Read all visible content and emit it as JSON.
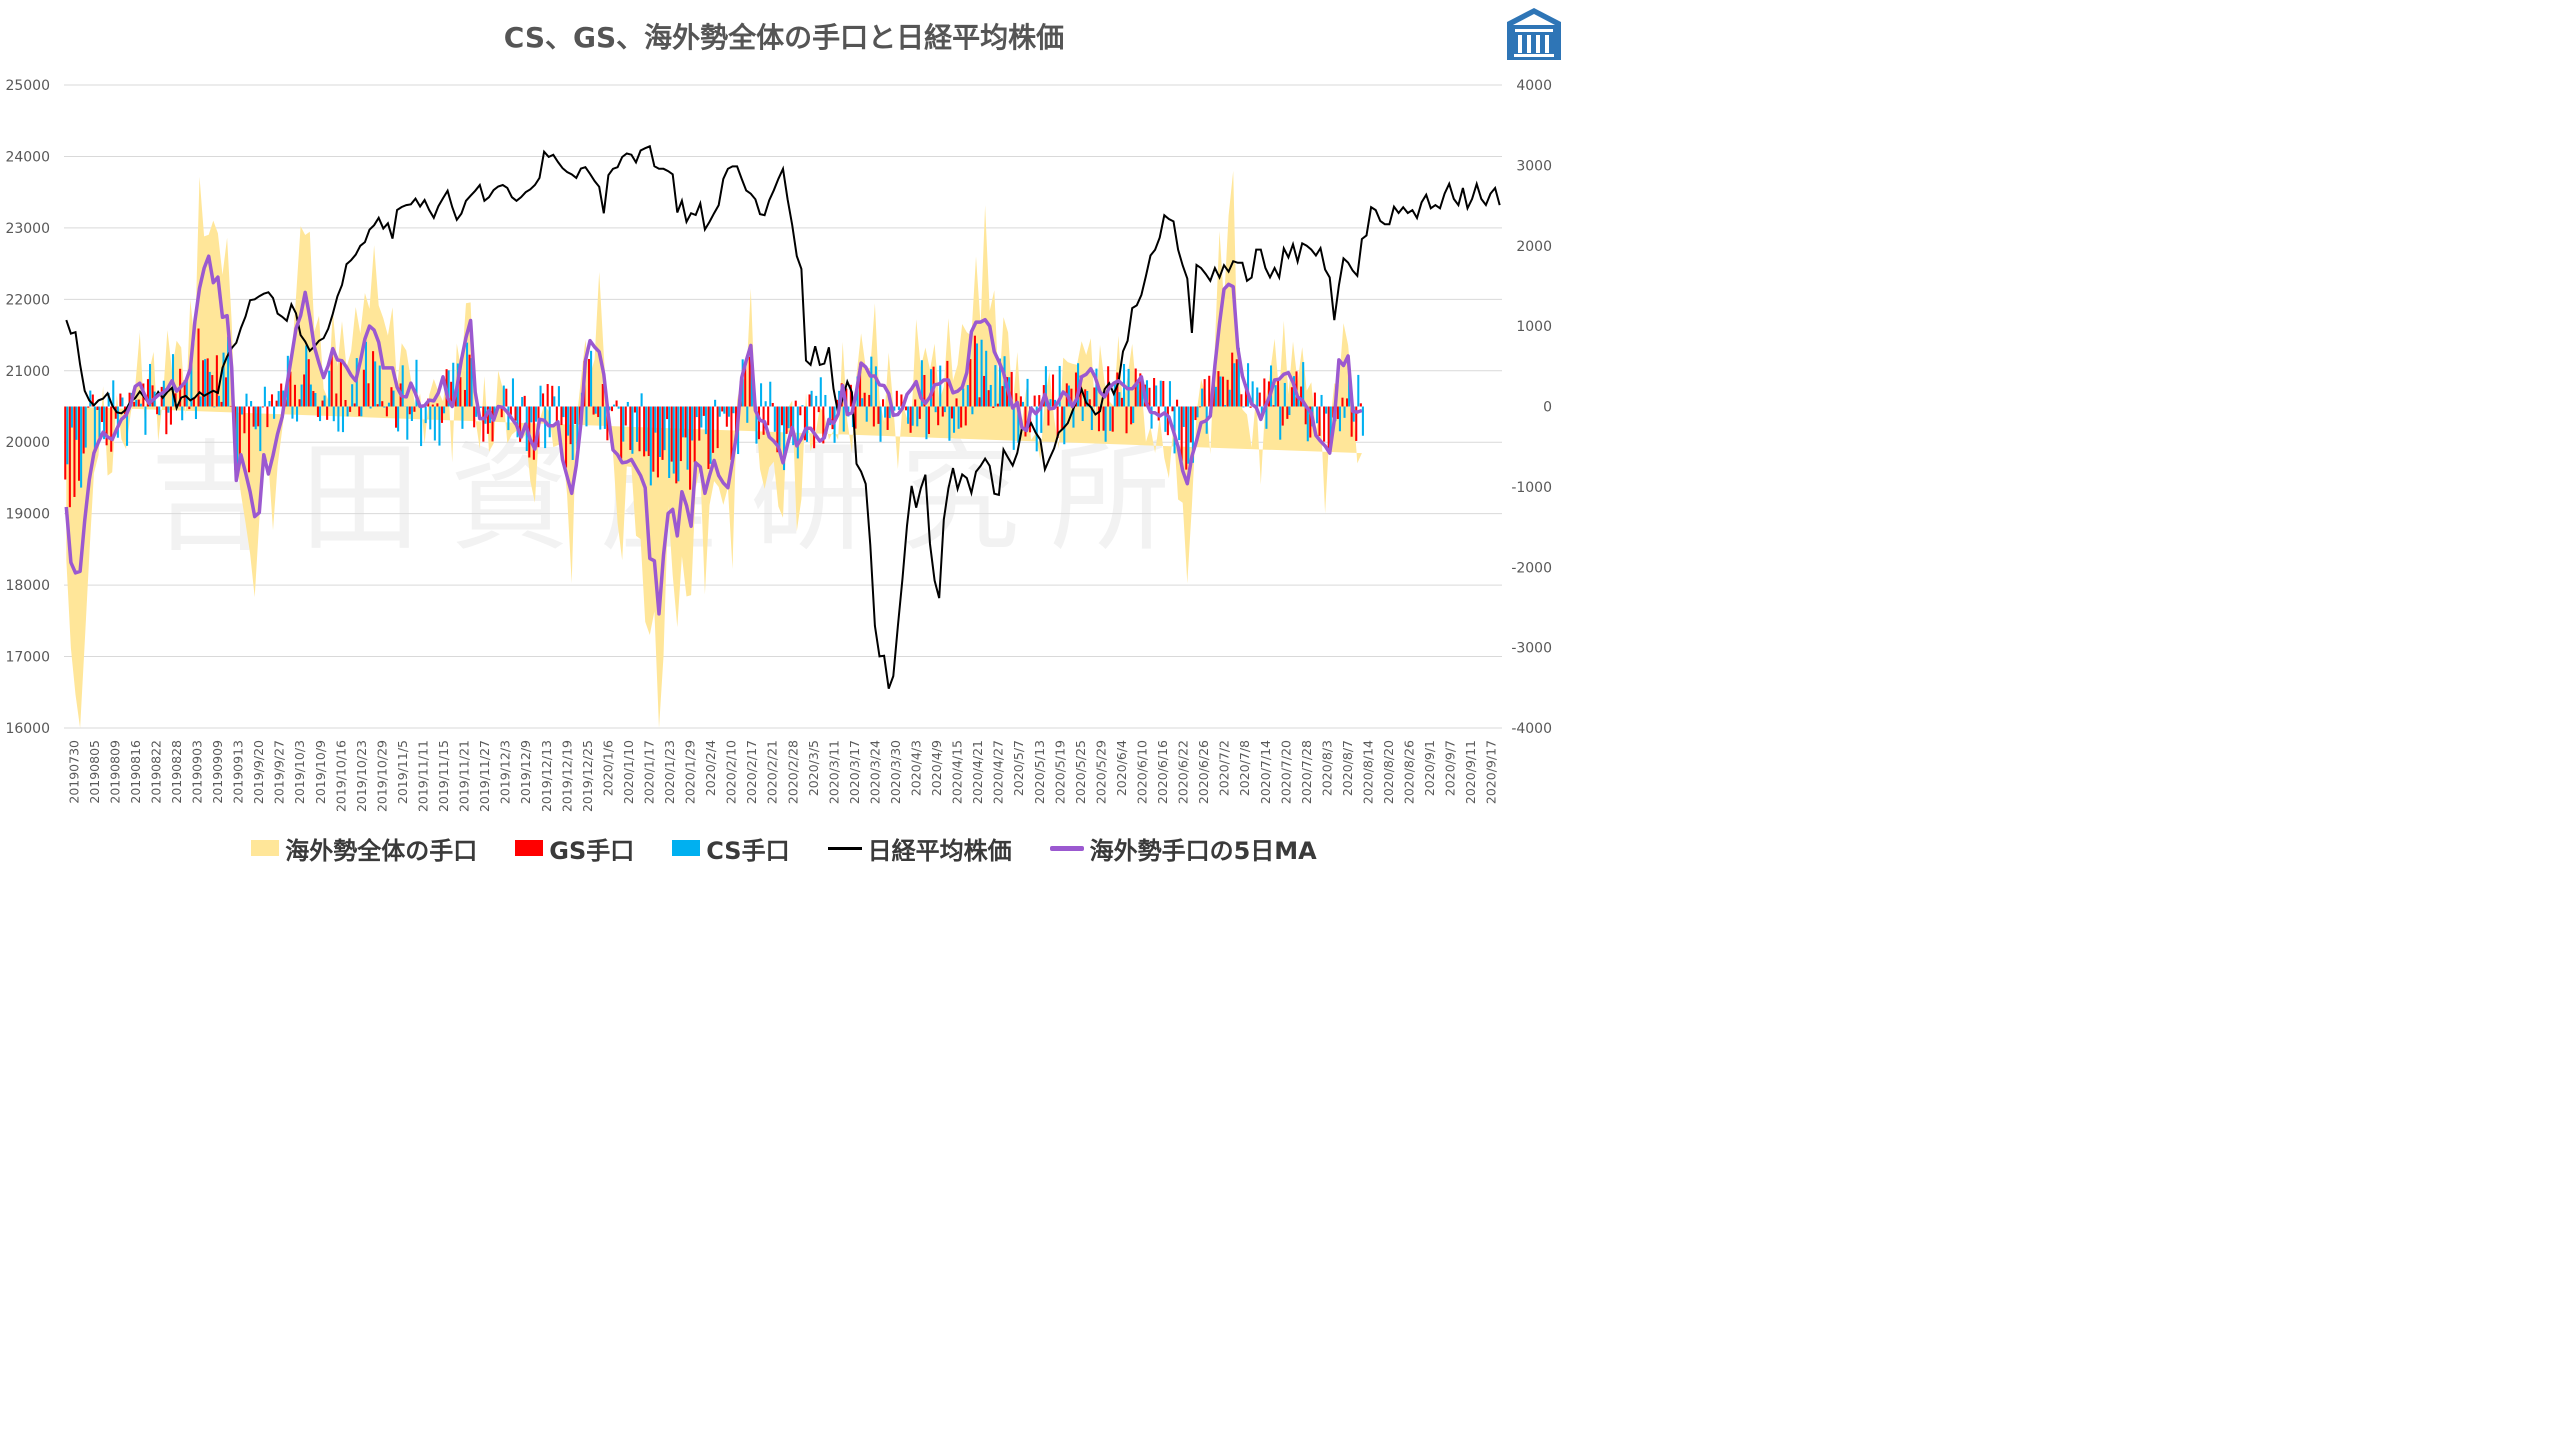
{
  "title": "CS、GS、海外勢全体の手口と日経平均株価",
  "watermark": "吉田資産研究所",
  "colors": {
    "foreign": "#FFE699",
    "gs": "#FF0000",
    "cs": "#00B0F0",
    "nikkei": "#000000",
    "ma5": "#9B59D0",
    "grid": "#D9D9D9",
    "logo": "#2E75B6"
  },
  "icons": {
    "logo": "building-logo-icon"
  },
  "legend": [
    {
      "key": "foreign",
      "label": "海外勢全体の手口",
      "kind": "area"
    },
    {
      "key": "gs",
      "label": "GS手口",
      "kind": "bar"
    },
    {
      "key": "cs",
      "label": "CS手口",
      "kind": "bar"
    },
    {
      "key": "nikkei",
      "label": "日経平均株価",
      "kind": "line"
    },
    {
      "key": "ma5",
      "label": "海外勢手口の5日MA",
      "kind": "line"
    }
  ],
  "chart_data": {
    "type": "bar",
    "left_axis": {
      "ticks": [
        "25000",
        "24000",
        "23000",
        "22000",
        "21000",
        "20000",
        "19000",
        "18000",
        "17000",
        "16000"
      ],
      "min": 16000,
      "max": 25000
    },
    "right_axis": {
      "ticks": [
        "4000",
        "3000",
        "2000",
        "1000",
        "0",
        "-1000",
        "-2000",
        "-3000",
        "-4000"
      ],
      "min": -4000,
      "max": 4000
    },
    "grid": true,
    "legend_position": "bottom",
    "x_tick_labels": [
      "20190730",
      "20190805",
      "20190809",
      "20190816",
      "20190822",
      "20190828",
      "20190903",
      "20190909",
      "20190913",
      "2019/9/20",
      "2019/9/27",
      "2019/10/3",
      "2019/10/9",
      "2019/10/16",
      "2019/10/23",
      "2019/10/29",
      "2019/11/5",
      "2019/11/11",
      "2019/11/15",
      "2019/11/21",
      "2019/11/27",
      "2019/12/3",
      "2019/12/9",
      "2019/12/13",
      "2019/12/19",
      "2019/12/25",
      "2020/1/6",
      "2020/1/10",
      "2020/1/17",
      "2020/1/23",
      "2020/1/29",
      "2020/2/4",
      "2020/2/10",
      "2020/2/17",
      "2020/2/21",
      "2020/2/28",
      "2020/3/5",
      "2020/3/11",
      "2020/3/17",
      "2020/3/24",
      "2020/3/30",
      "2020/4/3",
      "2020/4/9",
      "2020/4/15",
      "2020/4/21",
      "2020/4/27",
      "2020/5/7",
      "2020/5/13",
      "2020/5/19",
      "2020/5/25",
      "2020/5/29",
      "2020/6/4",
      "2020/6/10",
      "2020/6/16",
      "2020/6/22",
      "2020/6/26",
      "2020/7/2",
      "2020/7/8",
      "2020/7/14",
      "2020/7/20",
      "2020/7/28",
      "2020/8/3",
      "2020/8/7",
      "2020/8/14",
      "2020/8/20",
      "2020/8/26",
      "2020/9/1",
      "2020/9/7",
      "2020/9/11",
      "2020/9/17"
    ],
    "series": [
      {
        "key": "nikkei",
        "name": "日経平均株価",
        "axis": "left",
        "values": [
          21709,
          21521,
          21540,
          21087,
          20720,
          20586,
          20517,
          20585,
          20610,
          20685,
          20516,
          20419,
          20405,
          20455,
          20574,
          20618,
          20710,
          20628,
          20536,
          20586,
          20704,
          20620,
          20704,
          20761,
          20477,
          20625,
          20649,
          20585,
          20625,
          20700,
          20650,
          20685,
          20720,
          20690,
          21041,
          21199,
          21318,
          21392,
          21597,
          21759,
          21988,
          22001,
          22044,
          22079,
          22098,
          22019,
          21800,
          21755,
          21700,
          21930,
          21805,
          21500,
          21410,
          21280,
          21341,
          21420,
          21456,
          21587,
          21798,
          22041,
          22200,
          22492,
          22548,
          22625,
          22750,
          22800,
          22974,
          23038,
          23141,
          22992,
          23064,
          22850,
          23251,
          23292,
          23319,
          23330,
          23410,
          23300,
          23391,
          23250,
          23141,
          23303,
          23416,
          23520,
          23292,
          23113,
          23200,
          23379,
          23450,
          23519,
          23600,
          23379,
          23430,
          23529,
          23580,
          23600,
          23560,
          23430,
          23379,
          23430,
          23500,
          23540,
          23600,
          23700,
          24066,
          23994,
          24023,
          23924,
          23837,
          23782,
          23750,
          23700,
          23830,
          23850,
          23757,
          23656,
          23575,
          23204,
          23739,
          23827,
          23850,
          23992,
          24041,
          24025,
          23916,
          24083,
          24115,
          24142,
          23864,
          23828,
          23827,
          23795,
          23750,
          23215,
          23380,
          23084,
          23205,
          23180,
          23343,
          22977,
          23084,
          23205,
          23319,
          23685,
          23827,
          23861,
          23860,
          23685,
          23523,
          23479,
          23400,
          23193,
          23178,
          23386,
          23526,
          23687,
          23827,
          23400,
          23040,
          22605,
          22426,
          21142,
          21082,
          21344,
          21082,
          21100,
          21329,
          20749,
          20410,
          20613,
          20849,
          20700,
          19698,
          19589,
          19416,
          18560,
          17431,
          17002,
          17011,
          16552,
          16726,
          17431,
          18092,
          18832,
          19389,
          19084,
          19353,
          19546,
          18576,
          18065,
          17818,
          18917,
          19354,
          19638,
          19345,
          19550,
          19498,
          19290,
          19587,
          19669,
          19771,
          19669,
          19280,
          19262,
          19897,
          19783,
          19674,
          19850,
          20193,
          20179,
          20267,
          20133,
          20037,
          19619,
          19771,
          19914,
          20133,
          20193,
          20267,
          20433,
          20595,
          20741,
          20552,
          20493,
          20388,
          20433,
          20741,
          20826,
          20676,
          20834,
          21271,
          21419,
          21877,
          21916,
          22062,
          22325,
          22613,
          22695,
          22864,
          23178,
          23124,
          23091,
          22695,
          22474,
          22290,
          21530,
          22482,
          22437,
          22355,
          22259,
          22437,
          22305,
          22478,
          22388,
          22534,
          22512,
          22512,
          22259,
          22304,
          22696,
          22696,
          22438,
          22307,
          22438,
          22306,
          22714,
          22587,
          22770,
          22528,
          22784,
          22751,
          22696,
          22614,
          22717,
          22418,
          22306,
          21710,
          22195,
          22573,
          22514,
          22402,
          22329,
          22844,
          22895,
          23289,
          23249,
          23097,
          23051,
          23051,
          23296,
          23209,
          23289,
          23209,
          23249,
          23138,
          23358,
          23465,
          23274,
          23319,
          23274,
          23480,
          23617,
          23406,
          23319,
          23559,
          23274,
          23406,
          23616,
          23406,
          23320,
          23480,
          23559,
          23319
        ]
      },
      {
        "key": "ma5",
        "name": "海外勢手口の5日MA",
        "axis": "right",
        "values": [
          -1250,
          -1940,
          -2070,
          -2050,
          -1420,
          -910,
          -580,
          -440,
          -320,
          -380,
          -410,
          -280,
          -160,
          -110,
          20,
          250,
          290,
          150,
          40,
          90,
          140,
          170,
          220,
          320,
          190,
          250,
          310,
          470,
          1060,
          1470,
          1720,
          1870,
          1540,
          1610,
          1110,
          1130,
          480,
          -920,
          -600,
          -820,
          -1060,
          -1370,
          -1320,
          -600,
          -840,
          -610,
          -340,
          -130,
          260,
          610,
          970,
          1130,
          1420,
          1110,
          740,
          540,
          360,
          510,
          720,
          580,
          570,
          490,
          390,
          320,
          560,
          840,
          1000,
          950,
          800,
          480,
          480,
          480,
          240,
          130,
          120,
          290,
          160,
          0,
          10,
          80,
          70,
          170,
          370,
          110,
          0,
          230,
          580,
          860,
          1070,
          180,
          -150,
          -150,
          -50,
          -170,
          0,
          -10,
          -70,
          -150,
          -230,
          -380,
          -220,
          -410,
          -530,
          -160,
          -170,
          -240,
          -240,
          -190,
          -660,
          -870,
          -1080,
          -730,
          -210,
          570,
          820,
          740,
          680,
          400,
          -120,
          -540,
          -600,
          -700,
          -690,
          -660,
          -760,
          -860,
          -1010,
          -1890,
          -1920,
          -2580,
          -1850,
          -1330,
          -1280,
          -1610,
          -1060,
          -1230,
          -1490,
          -700,
          -750,
          -1080,
          -860,
          -670,
          -860,
          -950,
          -1010,
          -670,
          -300,
          360,
          570,
          760,
          -50,
          -170,
          -190,
          -380,
          -430,
          -500,
          -700,
          -470,
          -260,
          -490,
          -400,
          -270,
          -270,
          -350,
          -430,
          -390,
          -160,
          -210,
          -100,
          260,
          -100,
          -80,
          190,
          540,
          490,
          380,
          380,
          270,
          260,
          160,
          -110,
          -100,
          -20,
          150,
          220,
          310,
          110,
          40,
          120,
          270,
          280,
          330,
          330,
          170,
          190,
          240,
          420,
          930,
          1050,
          1050,
          1080,
          1000,
          680,
          560,
          420,
          200,
          -20,
          50,
          -260,
          -300,
          -20,
          -90,
          -20,
          150,
          -30,
          -20,
          70,
          180,
          130,
          0,
          100,
          370,
          400,
          470,
          360,
          180,
          120,
          230,
          290,
          320,
          270,
          220,
          220,
          290,
          370,
          60,
          -70,
          -80,
          -120,
          -80,
          -130,
          -310,
          -500,
          -800,
          -960,
          -620,
          -430,
          -200,
          -180,
          -120,
          510,
          1030,
          1460,
          1520,
          1490,
          730,
          380,
          200,
          30,
          -10,
          -160,
          0,
          140,
          330,
          340,
          400,
          420,
          300,
          120,
          80,
          -10,
          -80,
          -360,
          -430,
          -490,
          -580,
          -170,
          580,
          510,
          630,
          -60,
          -70,
          -50
        ]
      }
    ],
    "bar_series_note": "Daily bar values (foreign area, GS, CS) in right-axis units"
  }
}
